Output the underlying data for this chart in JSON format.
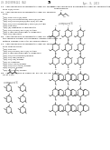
{
  "background_color": "#ffffff",
  "page_header_left": "US 20130096141 (A1)",
  "page_header_right": "Apr. 8, 2013",
  "page_number": "79",
  "text_color": "#000000",
  "text_gray": "#555555",
  "text_light": "#999999",
  "line_color": "#333333",
  "struct_color": "#444444"
}
